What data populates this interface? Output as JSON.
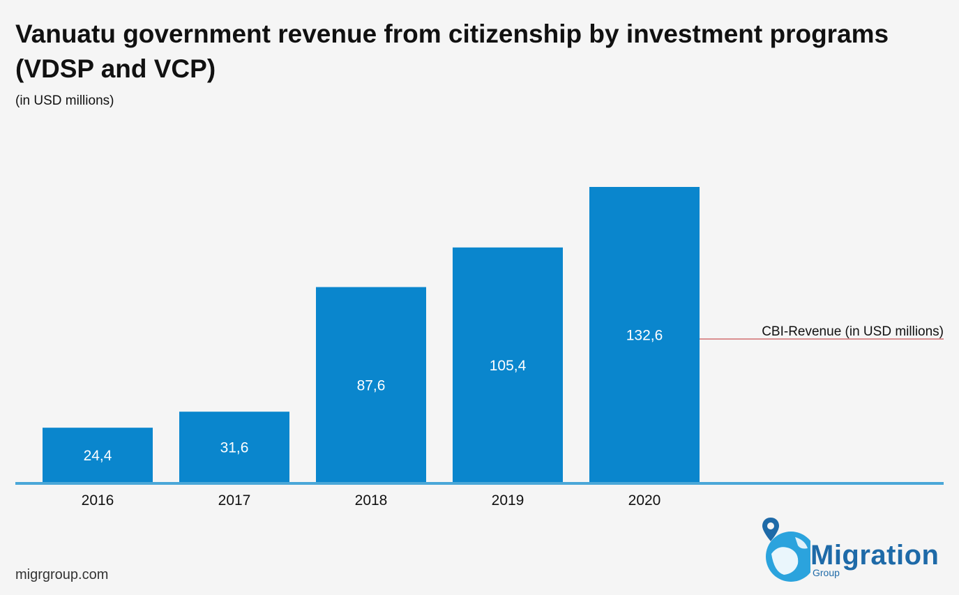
{
  "chart_data": {
    "type": "bar",
    "title": "Vanuatu government revenue from citizenship by investment programs (VDSP and VCP)",
    "subtitle": "(in USD millions)",
    "categories": [
      "2016",
      "2017",
      "2018",
      "2019",
      "2020"
    ],
    "series": [
      {
        "name": "CBI-Revenue (in USD millions)",
        "values": [
          24.4,
          31.6,
          87.6,
          105.4,
          132.6
        ],
        "labels": [
          "24,4",
          "31,6",
          "87,6",
          "105,4",
          "132,6"
        ]
      }
    ],
    "xlabel": "",
    "ylabel": "",
    "ylim": [
      0,
      132.6
    ],
    "grid": false,
    "legend_position": "right",
    "colors": {
      "bar": "#0a86cd",
      "axis": "#4aa7d8",
      "legend_line": "#c0292b",
      "label": "#ffffff"
    }
  },
  "footer": {
    "site": "migrgroup.com"
  },
  "logo": {
    "word": "Migration",
    "sub": "Group",
    "pin_icon": "map-pin-icon",
    "globe_icon": "globe-icon"
  }
}
